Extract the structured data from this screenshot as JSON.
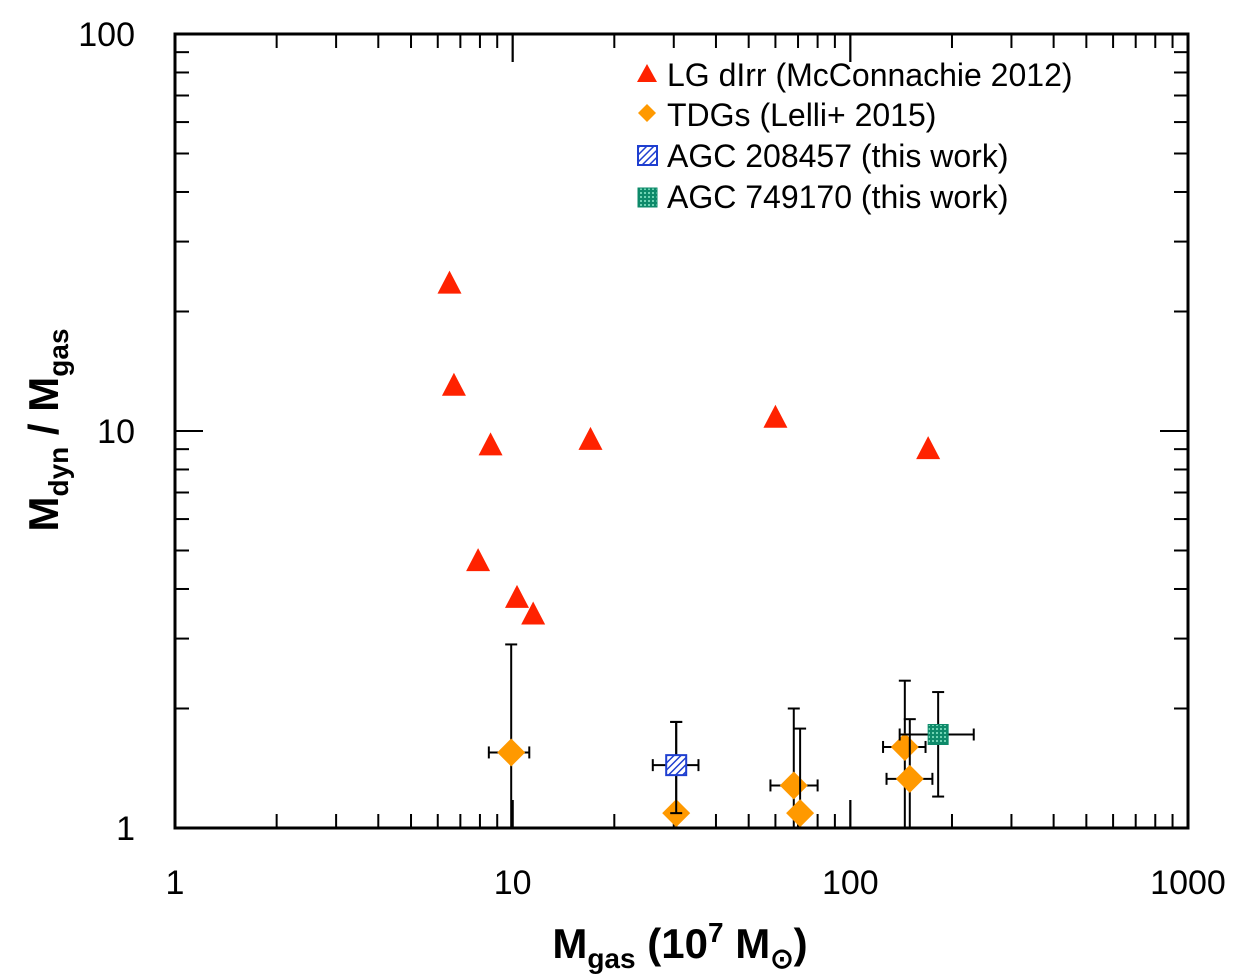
{
  "chart_data": {
    "type": "scatter",
    "x_scale": "log",
    "y_scale": "log",
    "xlim": [
      1,
      1000
    ],
    "ylim": [
      1,
      100
    ],
    "xlabel": {
      "main": "M",
      "sub": "gas",
      "rest_open": " (10",
      "sup": "7",
      "rest_mid": " M",
      "sun": "⊙",
      "rest_close": ")"
    },
    "ylabel": {
      "main1": "M",
      "sub1": "dyn",
      "slash": " / ",
      "main2": "M",
      "sub2": "gas"
    },
    "x_ticks": [
      {
        "value": 1,
        "label": "1"
      },
      {
        "value": 10,
        "label": "10"
      },
      {
        "value": 100,
        "label": "100"
      },
      {
        "value": 1000,
        "label": "1000"
      }
    ],
    "y_ticks": [
      {
        "value": 1,
        "label": "1"
      },
      {
        "value": 10,
        "label": "10"
      },
      {
        "value": 100,
        "label": "100"
      }
    ],
    "legend_position": "top-right",
    "series": [
      {
        "name": "LG dIrr (McConnachie 2012)",
        "marker": "triangle",
        "color": "#ff2200",
        "points": [
          {
            "x": 6.5,
            "y": 23.5
          },
          {
            "x": 6.7,
            "y": 13.0
          },
          {
            "x": 8.6,
            "y": 9.2
          },
          {
            "x": 17.0,
            "y": 9.5
          },
          {
            "x": 60.0,
            "y": 10.8
          },
          {
            "x": 170.0,
            "y": 9.0
          },
          {
            "x": 7.9,
            "y": 4.7
          },
          {
            "x": 10.3,
            "y": 3.8
          },
          {
            "x": 11.5,
            "y": 3.45
          }
        ]
      },
      {
        "name": "TDGs (Lelli+ 2015)",
        "marker": "diamond",
        "color": "#ff9900",
        "points": [
          {
            "x": 9.9,
            "y": 1.55,
            "xlo": 8.5,
            "xhi": 11.2,
            "ylo": 1.0,
            "yhi": 2.9
          },
          {
            "x": 30.5,
            "y": 1.09,
            "ylo": 1.0,
            "yhi": 1.85
          },
          {
            "x": 68.0,
            "y": 1.28,
            "xlo": 58.0,
            "xhi": 80.0,
            "ylo": 1.0,
            "yhi": 2.0
          },
          {
            "x": 71.0,
            "y": 1.09,
            "ylo": 1.0,
            "yhi": 1.78
          },
          {
            "x": 145.0,
            "y": 1.6,
            "xlo": 125.0,
            "xhi": 167.0,
            "ylo": 1.0,
            "yhi": 2.35
          },
          {
            "x": 150.0,
            "y": 1.33,
            "xlo": 128.0,
            "xhi": 175.0,
            "ylo": 1.0,
            "yhi": 1.88
          }
        ]
      },
      {
        "name": "AGC 208457 (this work)",
        "marker": "square-hatched",
        "color": "#1f3fd0",
        "points": [
          {
            "x": 30.5,
            "y": 1.44,
            "xlo": 26.0,
            "xhi": 35.5,
            "ylo": 1.09,
            "yhi": 1.85
          }
        ]
      },
      {
        "name": "AGC 749170 (this work)",
        "marker": "square-dotted",
        "color": "#0e8a6a",
        "points": [
          {
            "x": 182.0,
            "y": 1.72,
            "xlo": 140.0,
            "xhi": 232.0,
            "ylo": 1.2,
            "yhi": 2.2
          }
        ]
      }
    ]
  }
}
